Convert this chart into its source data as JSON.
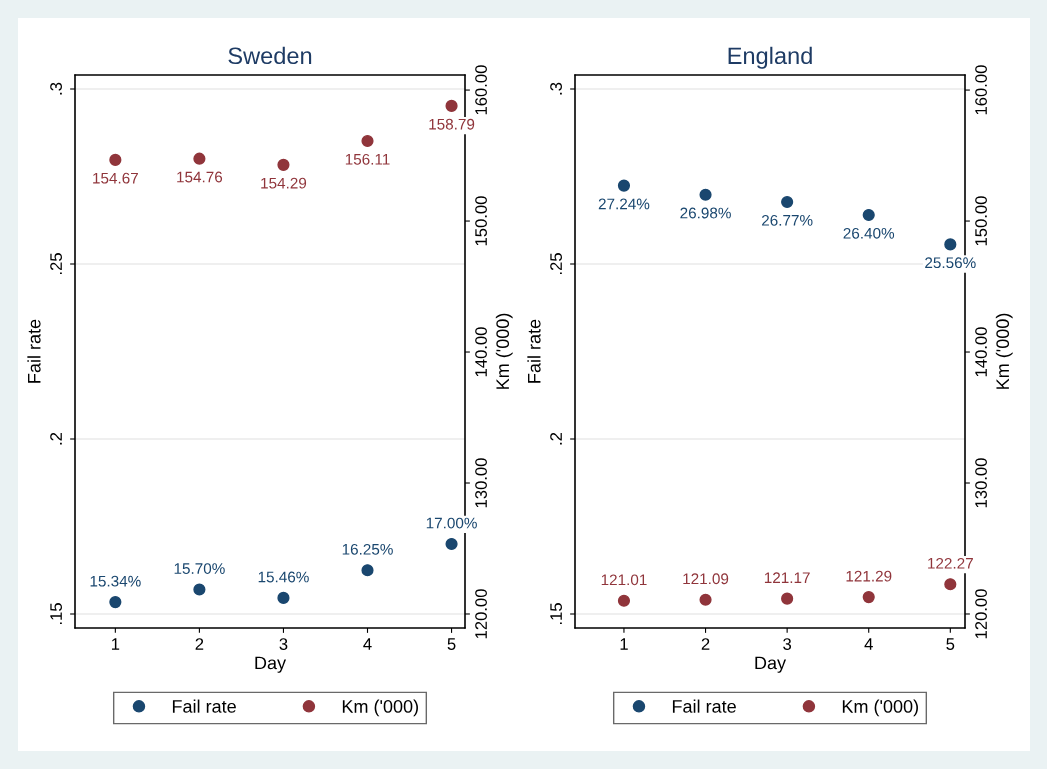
{
  "chart_data": [
    {
      "type": "scatter",
      "title": "Sweden",
      "xlabel": "Day",
      "ylabel": "Fail rate",
      "y2label": "Km ('000)",
      "x": [
        1,
        2,
        3,
        4,
        5
      ],
      "series": [
        {
          "name": "Fail rate",
          "color": "#1a476f",
          "values": [
            0.1534,
            0.157,
            0.1546,
            0.1625,
            0.17
          ],
          "value_labels": [
            "15.34%",
            "15.70%",
            "15.46%",
            "16.25%",
            "17.00%"
          ]
        },
        {
          "name": "Km ('000)",
          "color": "#90353b",
          "axis": "y2",
          "values": [
            154.67,
            154.76,
            154.29,
            156.11,
            158.79
          ],
          "value_labels": [
            "154.67",
            "154.76",
            "154.29",
            "156.11",
            "158.79"
          ]
        }
      ],
      "xlim": [
        0.52,
        5.16
      ],
      "xticks": [
        1,
        2,
        3,
        4,
        5
      ],
      "ylim": [
        0.146,
        0.304
      ],
      "yticks": [
        {
          "value": 0.15,
          "label": ".15"
        },
        {
          "value": 0.2,
          "label": ".2"
        },
        {
          "value": 0.25,
          "label": ".25"
        },
        {
          "value": 0.3,
          "label": ".3"
        }
      ],
      "y2lim": [
        118.93,
        161.15
      ],
      "y2ticks": [
        {
          "value": 120,
          "label": "120.00"
        },
        {
          "value": 130,
          "label": "130.00"
        },
        {
          "value": 140,
          "label": "140.00"
        },
        {
          "value": 150,
          "label": "150.00"
        },
        {
          "value": 160,
          "label": "160.00"
        }
      ],
      "grid": "y",
      "legend": "bottom",
      "marker": "circle"
    },
    {
      "type": "scatter",
      "title": "England",
      "xlabel": "Day",
      "ylabel": "Fail rate",
      "y2label": "Km ('000)",
      "x": [
        1,
        2,
        3,
        4,
        5
      ],
      "series": [
        {
          "name": "Fail rate",
          "color": "#1a476f",
          "values": [
            0.2724,
            0.2698,
            0.2677,
            0.264,
            0.2556
          ],
          "value_labels": [
            "27.24%",
            "26.98%",
            "26.77%",
            "26.40%",
            "25.56%"
          ]
        },
        {
          "name": "Km ('000)",
          "color": "#90353b",
          "axis": "y2",
          "values": [
            121.01,
            121.09,
            121.17,
            121.29,
            122.27
          ],
          "value_labels": [
            "121.01",
            "121.09",
            "121.17",
            "121.29",
            "122.27"
          ]
        }
      ],
      "xlim": [
        0.4,
        5.18
      ],
      "xticks": [
        1,
        2,
        3,
        4,
        5
      ],
      "ylim": [
        0.146,
        0.304
      ],
      "yticks": [
        {
          "value": 0.15,
          "label": ".15"
        },
        {
          "value": 0.2,
          "label": ".2"
        },
        {
          "value": 0.25,
          "label": ".25"
        },
        {
          "value": 0.3,
          "label": ".3"
        }
      ],
      "y2lim": [
        118.93,
        161.15
      ],
      "y2ticks": [
        {
          "value": 120,
          "label": "120.00"
        },
        {
          "value": 130,
          "label": "130.00"
        },
        {
          "value": 140,
          "label": "140.00"
        },
        {
          "value": 150,
          "label": "150.00"
        },
        {
          "value": 160,
          "label": "160.00"
        }
      ],
      "grid": "y",
      "legend": "bottom",
      "marker": "circle"
    }
  ]
}
